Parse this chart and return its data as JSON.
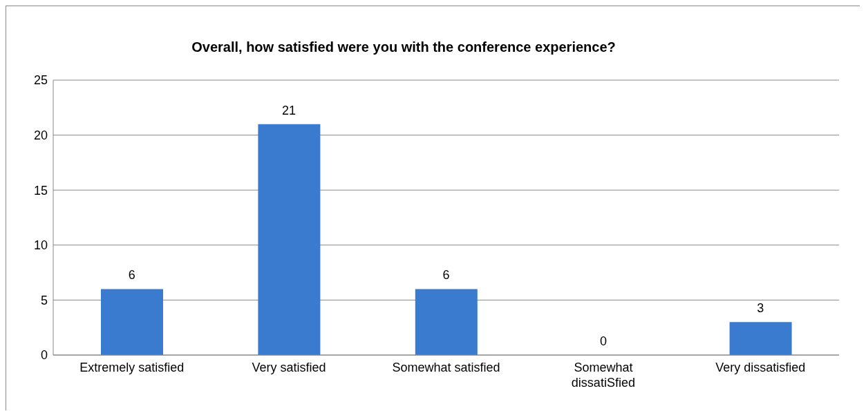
{
  "chart_data": {
    "type": "bar",
    "title": "Overall, how satisfied were you with the conference experience?",
    "categories": [
      "Extremely satisfied",
      "Very satisfied",
      "Somewhat satisfied",
      "Somewhat dissatiSfied",
      "Very dissatisfied"
    ],
    "values": [
      6,
      21,
      6,
      0,
      3
    ],
    "color": "#3a7bd0",
    "ylim": [
      0,
      25
    ],
    "yticks": [
      0,
      5,
      10,
      15,
      20,
      25
    ],
    "grid": "y",
    "data_labels": true
  }
}
